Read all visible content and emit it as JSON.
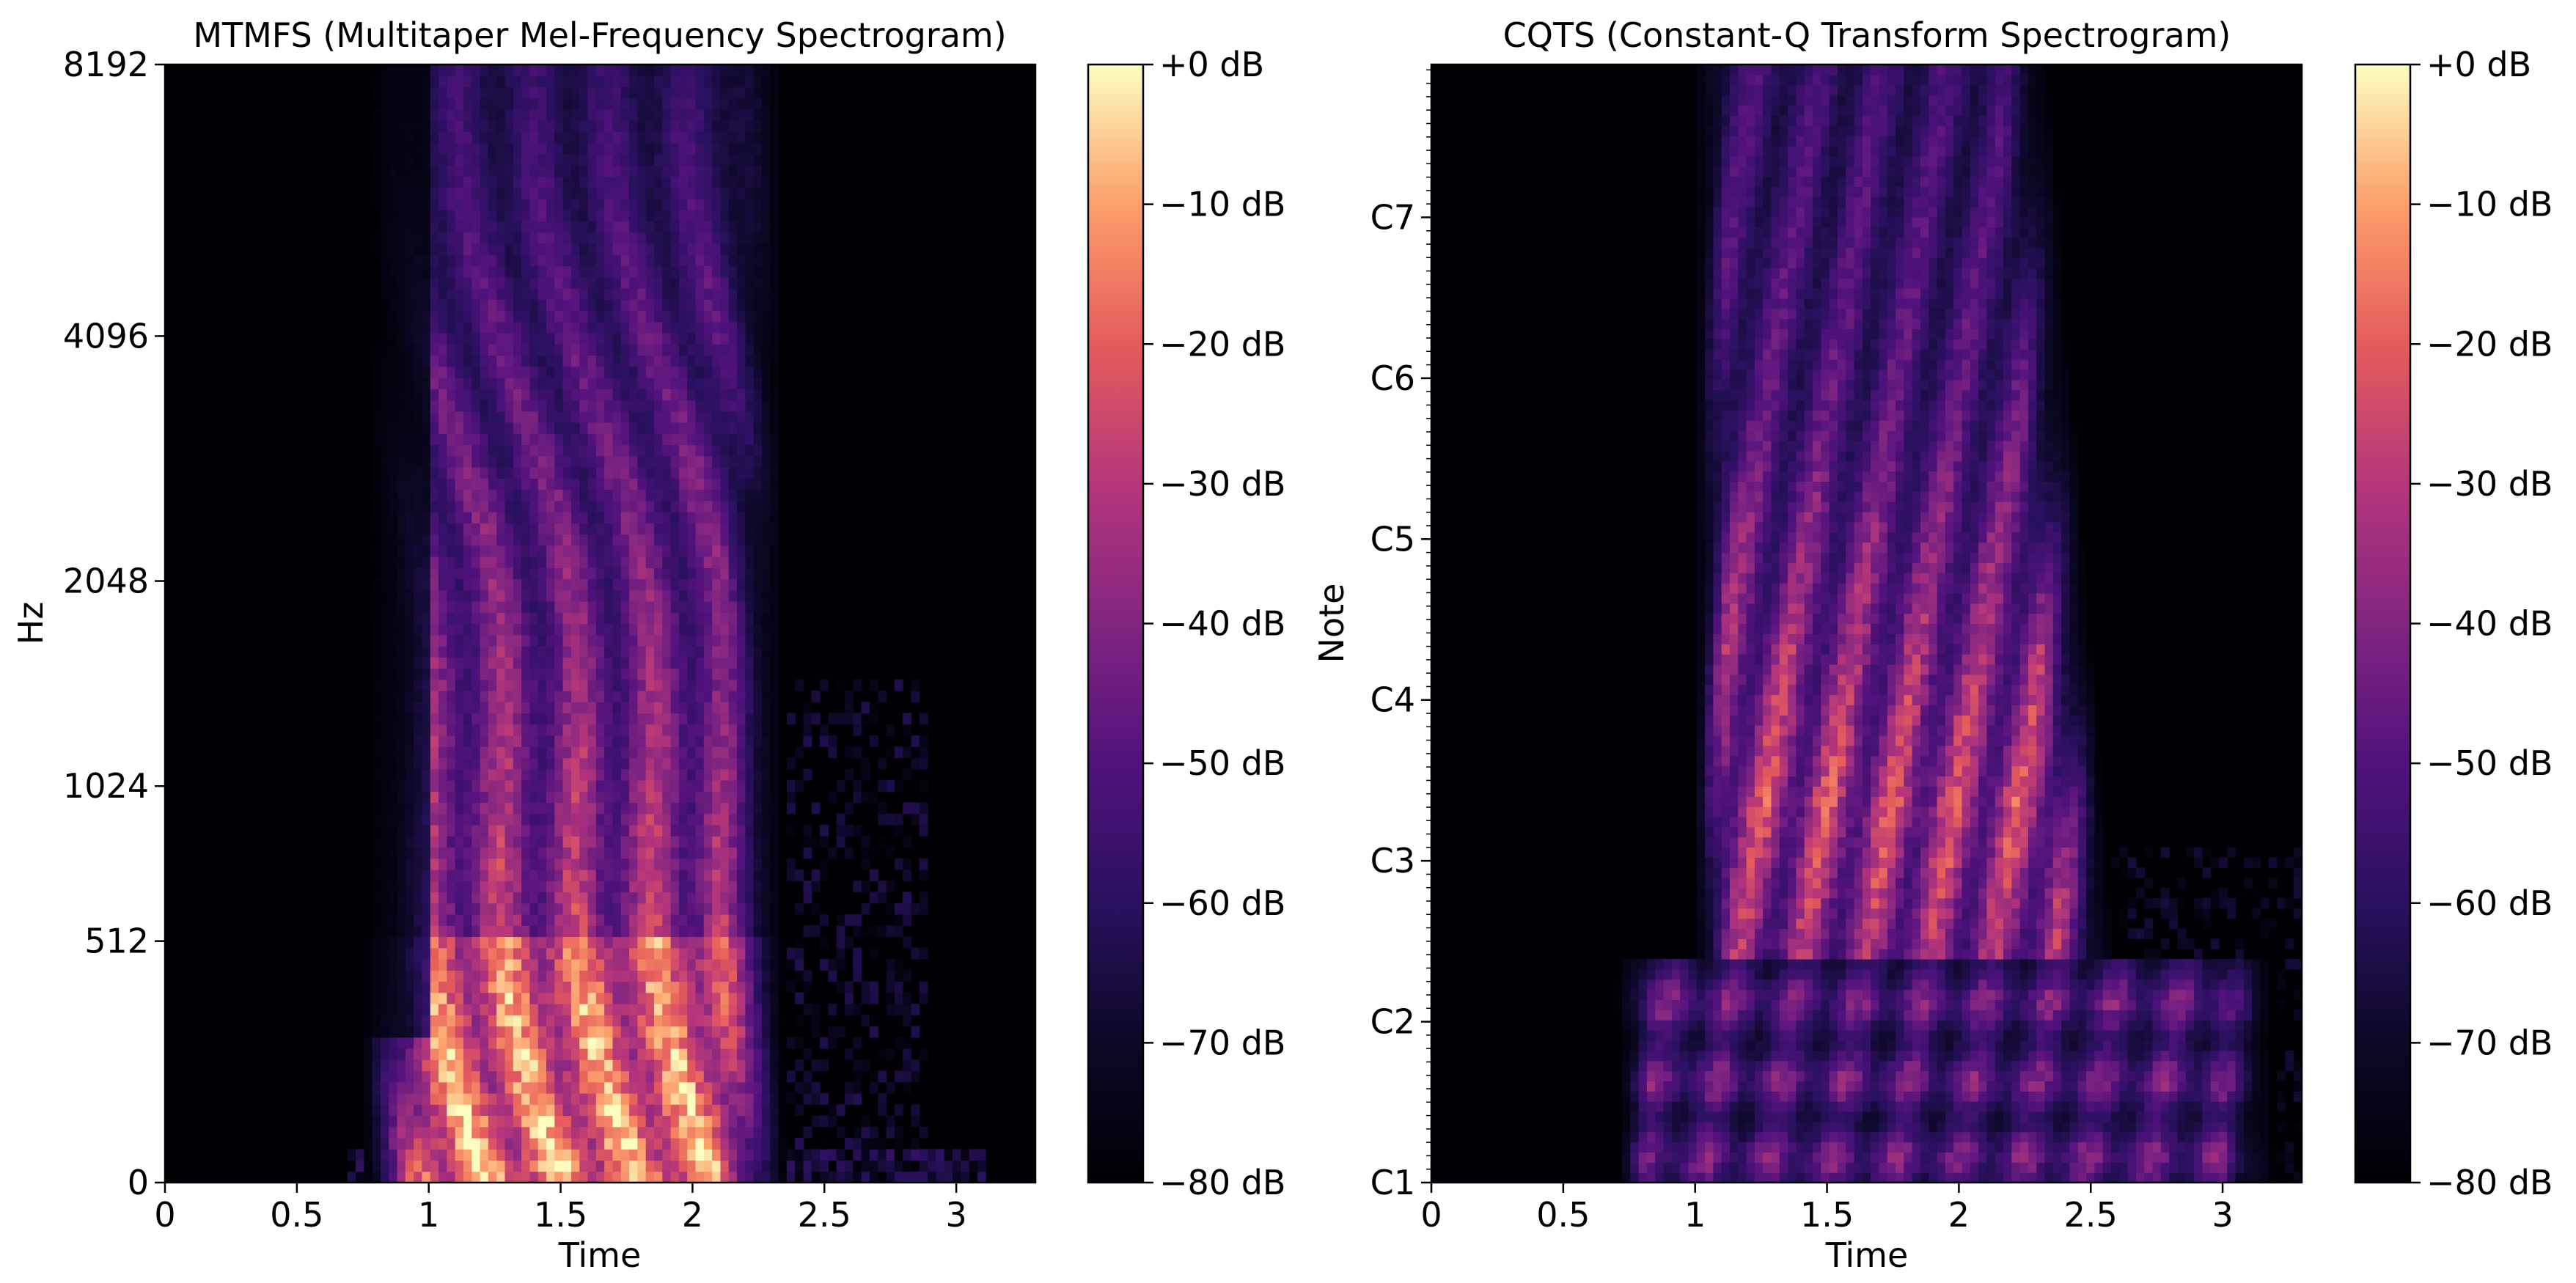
{
  "chart_data": [
    {
      "type": "heatmap",
      "title": "MTMFS (Multitaper Mel-Frequency Spectrogram)",
      "xlabel": "Time",
      "ylabel": "Hz",
      "x_ticks": [
        "0",
        "0.5",
        "1",
        "1.5",
        "2",
        "2.5",
        "3"
      ],
      "x_tick_values": [
        0,
        0.5,
        1,
        1.5,
        2,
        2.5,
        3
      ],
      "xlim": [
        0,
        3.3
      ],
      "y_scale": "mel",
      "y_ticks": [
        "0",
        "512",
        "1024",
        "2048",
        "4096",
        "8192"
      ],
      "y_tick_values": [
        0,
        512,
        1024,
        2048,
        4096,
        8192
      ],
      "ylim": [
        0,
        8192
      ],
      "active_time_range": [
        0.75,
        2.35
      ],
      "colorbar": {
        "colormap": "magma",
        "ticks": [
          "+0 dB",
          "−10 dB",
          "−20 dB",
          "−30 dB",
          "−40 dB",
          "−50 dB",
          "−60 dB",
          "−70 dB",
          "−80 dB"
        ],
        "tick_values": [
          0,
          -10,
          -20,
          -30,
          -40,
          -50,
          -60,
          -70,
          -80
        ],
        "range": [
          -80,
          0
        ]
      },
      "grid": false
    },
    {
      "type": "heatmap",
      "title": "CQTS (Constant-Q Transform Spectrogram)",
      "xlabel": "Time",
      "ylabel": "Note",
      "x_ticks": [
        "0",
        "0.5",
        "1",
        "1.5",
        "2",
        "2.5",
        "3"
      ],
      "x_tick_values": [
        0,
        0.5,
        1,
        1.5,
        2,
        2.5,
        3
      ],
      "xlim": [
        0,
        3.3
      ],
      "y_scale": "note",
      "y_ticks": [
        "C1",
        "C2",
        "C3",
        "C4",
        "C5",
        "C6",
        "C7"
      ],
      "y_tick_values": [
        1,
        2,
        3,
        4,
        5,
        6,
        7
      ],
      "ylim": [
        1,
        7.95
      ],
      "active_time_range": [
        0.7,
        3.2
      ],
      "colorbar": {
        "colormap": "magma",
        "ticks": [
          "+0 dB",
          "−10 dB",
          "−20 dB",
          "−30 dB",
          "−40 dB",
          "−50 dB",
          "−60 dB",
          "−70 dB",
          "−80 dB"
        ],
        "tick_values": [
          0,
          -10,
          -20,
          -30,
          -40,
          -50,
          -60,
          -70,
          -80
        ],
        "range": [
          -80,
          0
        ]
      },
      "grid": false
    }
  ]
}
